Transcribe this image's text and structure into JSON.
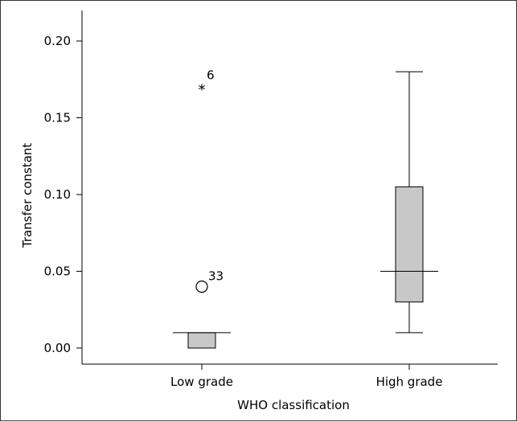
{
  "chart_data": {
    "type": "box",
    "xlabel": "WHO classification",
    "ylabel": "Transfer constant",
    "ylim": [
      -0.01,
      0.21
    ],
    "y_ticks": [
      0.0,
      0.05,
      0.1,
      0.15,
      0.2
    ],
    "y_tick_labels": [
      "0.00",
      "0.05",
      "0.10",
      "0.15",
      "0.20"
    ],
    "categories": [
      "Low grade",
      "High grade"
    ],
    "boxes": [
      {
        "category": "Low grade",
        "whisker_low": 0.0,
        "q1": 0.0,
        "median": 0.01,
        "q3": 0.01,
        "whisker_high": 0.01,
        "outliers": [
          {
            "value": 0.04,
            "marker": "circle",
            "label": "33"
          },
          {
            "value": 0.17,
            "marker": "star",
            "label": "6"
          }
        ]
      },
      {
        "category": "High grade",
        "whisker_low": 0.01,
        "q1": 0.03,
        "median": 0.05,
        "q3": 0.105,
        "whisker_high": 0.18,
        "outliers": []
      }
    ],
    "box_fill": "#c8c8c8",
    "line_color": "#000000",
    "grid": false
  }
}
